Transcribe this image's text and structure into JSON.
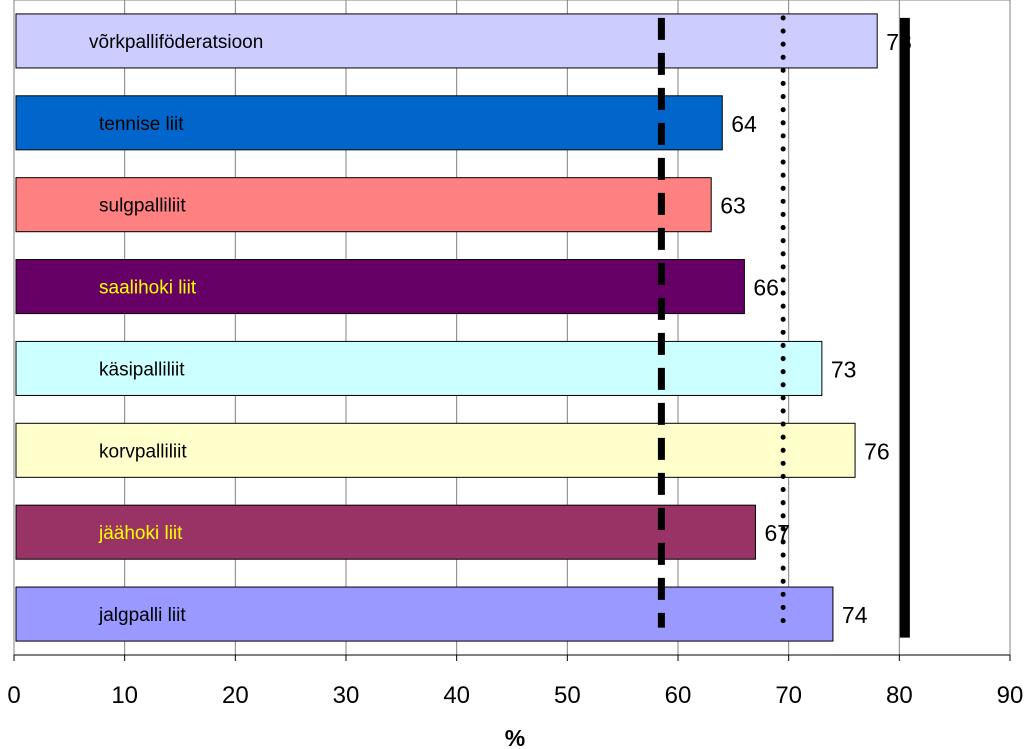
{
  "chart_data": {
    "type": "bar",
    "orientation": "horizontal",
    "xlabel": "%",
    "xlim": [
      0,
      90
    ],
    "xticks": [
      0,
      10,
      20,
      30,
      40,
      50,
      60,
      70,
      80,
      90
    ],
    "grid": "vertical",
    "legend": "none",
    "categories": [
      "võrkpalliföderatsioon",
      "tennise liit",
      "sulgpalliliit",
      "saalihoki liit",
      "käsipalliliit",
      "korvpalliliit",
      "jäähoki liit",
      "jalgpalli liit"
    ],
    "values": [
      78,
      64,
      63,
      66,
      73,
      76,
      67,
      74
    ],
    "value_labels": [
      "78",
      "64",
      "63",
      "66",
      "73",
      "76",
      "67",
      "74"
    ],
    "bar_colors": [
      "#ccccff",
      "#0066cc",
      "#ff8080",
      "#660066",
      "#ccffff",
      "#ffffcc",
      "#993366",
      "#9999ff"
    ],
    "label_colors": [
      "#000000",
      "#000000",
      "#000000",
      "#ffff00",
      "#000000",
      "#000000",
      "#ffff00",
      "#000000"
    ],
    "reference_lines": [
      {
        "style": "dashed",
        "x": 58.5,
        "color": "#000000"
      },
      {
        "style": "dotted",
        "x": 69.5,
        "color": "#000000"
      },
      {
        "style": "solid",
        "x": 80.5,
        "color": "#000000"
      }
    ]
  }
}
